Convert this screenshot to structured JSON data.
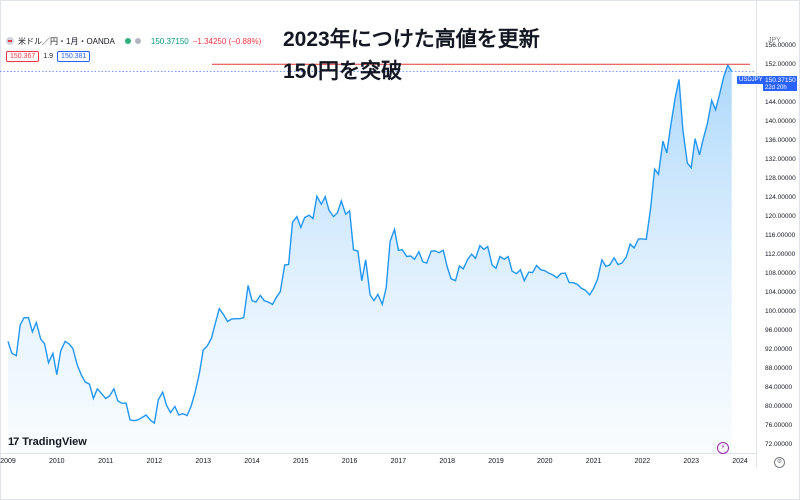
{
  "header": {
    "symbol": "米ドル／円・1月・OANDA",
    "quote": "150.37150",
    "change": "−1.34250 (−0.88%)",
    "bid": "150.367",
    "spread": "1.9",
    "ask": "150.381"
  },
  "headline": {
    "line1": "2023年につけた高値を更新",
    "line2": "150円を突破"
  },
  "axis": {
    "currency": "JPY",
    "symbol_tag": "USDJPY",
    "price_tag": "150.37150",
    "countdown_tag": "22d 20h"
  },
  "brand": {
    "logo_mark": "17",
    "name": "TradingView"
  },
  "icons": {
    "flash": "flash-icon",
    "settings": "gear-icon"
  },
  "colors": {
    "line": "#2196f3",
    "fill": "#bbdefb",
    "highlight": "#e53935",
    "tag": "#2962ff"
  },
  "chart_data": {
    "type": "area",
    "title": "",
    "xlabel": "",
    "ylabel": "",
    "x_ticks": [
      "2009",
      "2010",
      "2011",
      "2012",
      "2013",
      "2014",
      "2015",
      "2016",
      "2017",
      "2018",
      "2019",
      "2020",
      "2021",
      "2022",
      "2023",
      "2024"
    ],
    "y_ticks": [
      "156.00000",
      "152.00000",
      "148.00000",
      "144.00000",
      "140.00000",
      "136.00000",
      "132.00000",
      "128.00000",
      "124.00000",
      "120.00000",
      "116.00000",
      "112.00000",
      "108.00000",
      "104.00000",
      "100.00000",
      "96.00000",
      "92.00000",
      "88.00000",
      "84.00000",
      "80.00000",
      "76.00000",
      "72.00000"
    ],
    "ylim": [
      70,
      157
    ],
    "reference_line": 151.9,
    "series": [
      {
        "points": [
          [
            2009.0,
            93.5
          ],
          [
            2009.08,
            91.0
          ],
          [
            2009.17,
            90.5
          ],
          [
            2009.25,
            97.0
          ],
          [
            2009.33,
            98.5
          ],
          [
            2009.42,
            98.5
          ],
          [
            2009.5,
            95.5
          ],
          [
            2009.58,
            97.5
          ],
          [
            2009.67,
            94.0
          ],
          [
            2009.75,
            93.0
          ],
          [
            2009.83,
            89.0
          ],
          [
            2009.92,
            91.0
          ],
          [
            2010.0,
            86.5
          ],
          [
            2010.08,
            91.5
          ],
          [
            2010.17,
            93.5
          ],
          [
            2010.25,
            93.0
          ],
          [
            2010.33,
            92.0
          ],
          [
            2010.42,
            88.5
          ],
          [
            2010.5,
            86.5
          ],
          [
            2010.58,
            85.0
          ],
          [
            2010.67,
            84.5
          ],
          [
            2010.75,
            81.5
          ],
          [
            2010.83,
            83.5
          ],
          [
            2010.92,
            82.5
          ],
          [
            2011.0,
            81.5
          ],
          [
            2011.08,
            82.0
          ],
          [
            2011.17,
            83.5
          ],
          [
            2011.25,
            81.0
          ],
          [
            2011.33,
            80.5
          ],
          [
            2011.42,
            80.5
          ],
          [
            2011.5,
            77.0
          ],
          [
            2011.58,
            76.8
          ],
          [
            2011.67,
            77.0
          ],
          [
            2011.75,
            77.5
          ],
          [
            2011.83,
            78.0
          ],
          [
            2011.92,
            76.9
          ],
          [
            2012.0,
            76.3
          ],
          [
            2012.08,
            81.2
          ],
          [
            2012.17,
            82.8
          ],
          [
            2012.25,
            80.0
          ],
          [
            2012.33,
            78.5
          ],
          [
            2012.42,
            79.8
          ],
          [
            2012.5,
            78.0
          ],
          [
            2012.58,
            78.3
          ],
          [
            2012.67,
            77.9
          ],
          [
            2012.75,
            79.8
          ],
          [
            2012.83,
            82.6
          ],
          [
            2012.92,
            86.7
          ],
          [
            2013.0,
            91.7
          ],
          [
            2013.08,
            92.5
          ],
          [
            2013.17,
            94.2
          ],
          [
            2013.25,
            97.4
          ],
          [
            2013.33,
            100.4
          ],
          [
            2013.42,
            99.1
          ],
          [
            2013.5,
            97.7
          ],
          [
            2013.58,
            98.2
          ],
          [
            2013.67,
            98.3
          ],
          [
            2013.75,
            98.3
          ],
          [
            2013.83,
            98.5
          ],
          [
            2013.92,
            105.3
          ],
          [
            2014.0,
            102.1
          ],
          [
            2014.08,
            101.8
          ],
          [
            2014.17,
            103.2
          ],
          [
            2014.25,
            102.1
          ],
          [
            2014.33,
            101.8
          ],
          [
            2014.42,
            101.3
          ],
          [
            2014.5,
            102.8
          ],
          [
            2014.58,
            104.0
          ],
          [
            2014.67,
            109.6
          ],
          [
            2014.75,
            109.7
          ],
          [
            2014.83,
            118.6
          ],
          [
            2014.92,
            119.8
          ],
          [
            2015.0,
            117.5
          ],
          [
            2015.08,
            119.6
          ],
          [
            2015.17,
            120.1
          ],
          [
            2015.25,
            119.4
          ],
          [
            2015.33,
            124.1
          ],
          [
            2015.42,
            122.4
          ],
          [
            2015.5,
            124.0
          ],
          [
            2015.58,
            121.1
          ],
          [
            2015.67,
            119.8
          ],
          [
            2015.75,
            120.6
          ],
          [
            2015.83,
            123.1
          ],
          [
            2015.92,
            120.3
          ],
          [
            2016.0,
            121.0
          ],
          [
            2016.08,
            112.8
          ],
          [
            2016.17,
            112.5
          ],
          [
            2016.25,
            106.3
          ],
          [
            2016.33,
            110.7
          ],
          [
            2016.42,
            103.3
          ],
          [
            2016.5,
            102.1
          ],
          [
            2016.58,
            103.4
          ],
          [
            2016.67,
            101.3
          ],
          [
            2016.75,
            104.8
          ],
          [
            2016.83,
            114.6
          ],
          [
            2016.92,
            117.1
          ],
          [
            2017.0,
            112.7
          ],
          [
            2017.08,
            112.8
          ],
          [
            2017.17,
            111.4
          ],
          [
            2017.25,
            111.5
          ],
          [
            2017.33,
            110.8
          ],
          [
            2017.42,
            112.4
          ],
          [
            2017.5,
            110.3
          ],
          [
            2017.58,
            110.0
          ],
          [
            2017.67,
            112.5
          ],
          [
            2017.75,
            112.6
          ],
          [
            2017.83,
            112.2
          ],
          [
            2017.92,
            112.7
          ],
          [
            2018.0,
            109.2
          ],
          [
            2018.08,
            106.7
          ],
          [
            2018.17,
            106.3
          ],
          [
            2018.25,
            109.4
          ],
          [
            2018.33,
            108.8
          ],
          [
            2018.42,
            110.8
          ],
          [
            2018.5,
            111.9
          ],
          [
            2018.58,
            111.0
          ],
          [
            2018.67,
            113.7
          ],
          [
            2018.75,
            112.9
          ],
          [
            2018.83,
            113.5
          ],
          [
            2018.92,
            109.6
          ],
          [
            2019.0,
            108.9
          ],
          [
            2019.08,
            111.4
          ],
          [
            2019.17,
            110.8
          ],
          [
            2019.25,
            111.4
          ],
          [
            2019.33,
            108.3
          ],
          [
            2019.42,
            107.8
          ],
          [
            2019.5,
            108.6
          ],
          [
            2019.58,
            106.3
          ],
          [
            2019.67,
            108.1
          ],
          [
            2019.75,
            108.0
          ],
          [
            2019.83,
            109.5
          ],
          [
            2019.92,
            108.6
          ],
          [
            2020.0,
            108.4
          ],
          [
            2020.08,
            107.9
          ],
          [
            2020.17,
            107.5
          ],
          [
            2020.25,
            106.9
          ],
          [
            2020.33,
            107.8
          ],
          [
            2020.42,
            107.9
          ],
          [
            2020.5,
            105.9
          ],
          [
            2020.58,
            105.9
          ],
          [
            2020.67,
            105.5
          ],
          [
            2020.75,
            104.7
          ],
          [
            2020.83,
            104.3
          ],
          [
            2020.92,
            103.3
          ],
          [
            2021.0,
            104.7
          ],
          [
            2021.08,
            106.6
          ],
          [
            2021.17,
            110.7
          ],
          [
            2021.25,
            109.3
          ],
          [
            2021.33,
            109.6
          ],
          [
            2021.42,
            111.1
          ],
          [
            2021.5,
            109.7
          ],
          [
            2021.58,
            110.0
          ],
          [
            2021.67,
            111.3
          ],
          [
            2021.75,
            114.0
          ],
          [
            2021.83,
            113.2
          ],
          [
            2021.92,
            115.1
          ],
          [
            2022.0,
            115.1
          ],
          [
            2022.08,
            115.0
          ],
          [
            2022.17,
            121.7
          ],
          [
            2022.25,
            129.8
          ],
          [
            2022.33,
            128.7
          ],
          [
            2022.42,
            135.7
          ],
          [
            2022.5,
            133.2
          ],
          [
            2022.58,
            138.9
          ],
          [
            2022.67,
            144.7
          ],
          [
            2022.75,
            148.7
          ],
          [
            2022.83,
            138.0
          ],
          [
            2022.92,
            131.1
          ],
          [
            2023.0,
            130.1
          ],
          [
            2023.08,
            136.2
          ],
          [
            2023.17,
            132.8
          ],
          [
            2023.25,
            136.3
          ],
          [
            2023.33,
            139.3
          ],
          [
            2023.42,
            144.3
          ],
          [
            2023.5,
            142.3
          ],
          [
            2023.58,
            145.5
          ],
          [
            2023.67,
            149.4
          ],
          [
            2023.75,
            151.7
          ],
          [
            2023.83,
            150.4
          ]
        ]
      }
    ]
  }
}
